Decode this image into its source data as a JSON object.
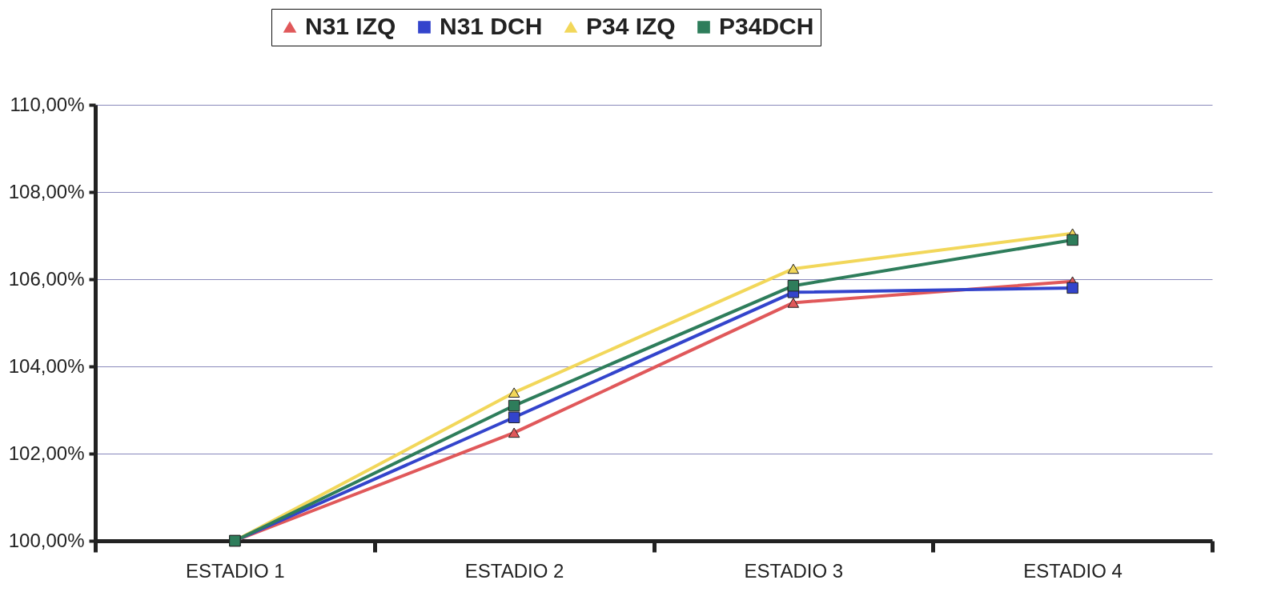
{
  "chart_data": {
    "type": "line",
    "categories": [
      "ESTADIO  1",
      "ESTADIO  2",
      "ESTADIO  3",
      "ESTADIO  4"
    ],
    "series": [
      {
        "name": "N31 IZQ",
        "color": "#e0585a",
        "marker": "triangle",
        "values": [
          100,
          102.48,
          105.46,
          105.95
        ]
      },
      {
        "name": "N31 DCH",
        "color": "#3344cc",
        "marker": "square",
        "values": [
          100,
          102.83,
          105.7,
          105.8
        ]
      },
      {
        "name": "P34 IZQ",
        "color": "#f2d75a",
        "marker": "triangle",
        "values": [
          100,
          103.4,
          106.24,
          107.05
        ]
      },
      {
        "name": "P34DCH",
        "color": "#2e7d5b",
        "marker": "square",
        "values": [
          100,
          103.1,
          105.85,
          106.9
        ]
      }
    ],
    "ylim": [
      100,
      110
    ],
    "yticks": [
      {
        "value": 100,
        "label": "100,00%"
      },
      {
        "value": 102,
        "label": "102,00%"
      },
      {
        "value": 104,
        "label": "104,00%"
      },
      {
        "value": 106,
        "label": "106,00%"
      },
      {
        "value": 108,
        "label": "108,00%"
      },
      {
        "value": 110,
        "label": "110,00%"
      }
    ],
    "grid": "y",
    "legend": "top",
    "line_style": "solid"
  }
}
